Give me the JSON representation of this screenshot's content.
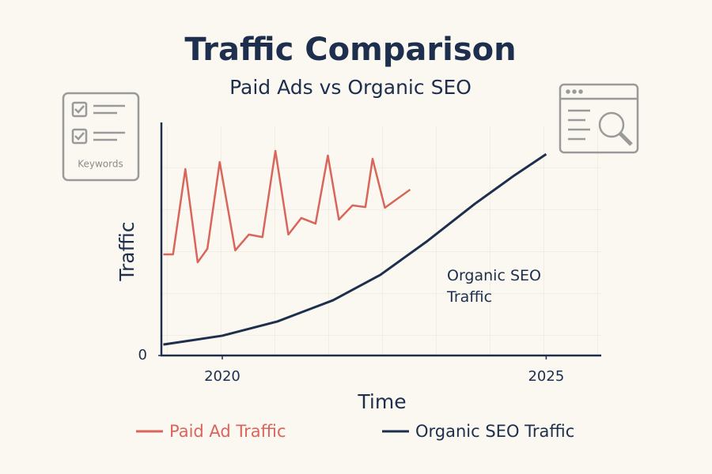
{
  "chart_data": {
    "type": "line",
    "title": "Traffic Comparison",
    "subtitle": "Paid Ads vs Organic SEO",
    "x_label": "Time",
    "y_label": "Traffic",
    "annotation": "Organic SEO Traffic",
    "icon_label": "Keywords",
    "xlim": [
      2019.06,
      2025.85
    ],
    "xticks": [
      2020,
      2025
    ],
    "ylim": [
      0,
      100
    ],
    "yticks": [
      0
    ],
    "series": [
      {
        "name": "Paid Ad Traffic",
        "color": "#d9655b",
        "x": [
          2019.09,
          2019.24,
          2019.43,
          2019.62,
          2019.77,
          2019.96,
          2020.2,
          2020.41,
          2020.62,
          2020.82,
          2021.02,
          2021.22,
          2021.44,
          2021.63,
          2021.8,
          2022.01,
          2022.21,
          2022.32,
          2022.51,
          2022.9
        ],
        "values": [
          43.4,
          43.4,
          80,
          40,
          45.8,
          83,
          45.1,
          51.9,
          50.8,
          87.8,
          51.9,
          59,
          56.6,
          85.8,
          58.3,
          64.4,
          63.7,
          84.4,
          63.4,
          71.2
        ]
      },
      {
        "name": "Organic SEO Traffic",
        "color": "#1d2f4d",
        "x": [
          2019.09,
          2020,
          2020.85,
          2021.71,
          2022.44,
          2023.17,
          2023.9,
          2024.51,
          2025
        ],
        "values": [
          4.7,
          8.5,
          14.6,
          23.7,
          34.6,
          49.2,
          65.1,
          77.3,
          86.4
        ]
      }
    ]
  }
}
